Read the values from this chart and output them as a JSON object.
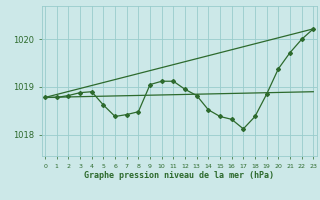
{
  "hours": [
    0,
    1,
    2,
    3,
    4,
    5,
    6,
    7,
    8,
    9,
    10,
    11,
    12,
    13,
    14,
    15,
    16,
    17,
    18,
    19,
    20,
    21,
    22,
    23
  ],
  "pressure": [
    1018.78,
    1018.78,
    1018.82,
    1018.88,
    1018.9,
    1018.62,
    1018.38,
    1018.42,
    1018.48,
    1019.05,
    1019.12,
    1019.12,
    1018.95,
    1018.82,
    1018.52,
    1018.38,
    1018.32,
    1018.12,
    1018.38,
    1018.85,
    1019.38,
    1019.72,
    1020.0,
    1020.22
  ],
  "line1_x": [
    0,
    23
  ],
  "line1_y": [
    1018.78,
    1018.9
  ],
  "line2_x": [
    0,
    23
  ],
  "line2_y": [
    1018.78,
    1020.22
  ],
  "line_color": "#2d6a2d",
  "bg_color": "#cce8e8",
  "grid_color": "#99cccc",
  "ylabel_ticks": [
    1018,
    1019,
    1020
  ],
  "xlabel_ticks": [
    0,
    1,
    2,
    3,
    4,
    5,
    6,
    7,
    8,
    9,
    10,
    11,
    12,
    13,
    14,
    15,
    16,
    17,
    18,
    19,
    20,
    21,
    22,
    23
  ],
  "xlabel": "Graphe pression niveau de la mer (hPa)",
  "ylim": [
    1017.55,
    1020.7
  ],
  "xlim": [
    -0.3,
    23.3
  ]
}
